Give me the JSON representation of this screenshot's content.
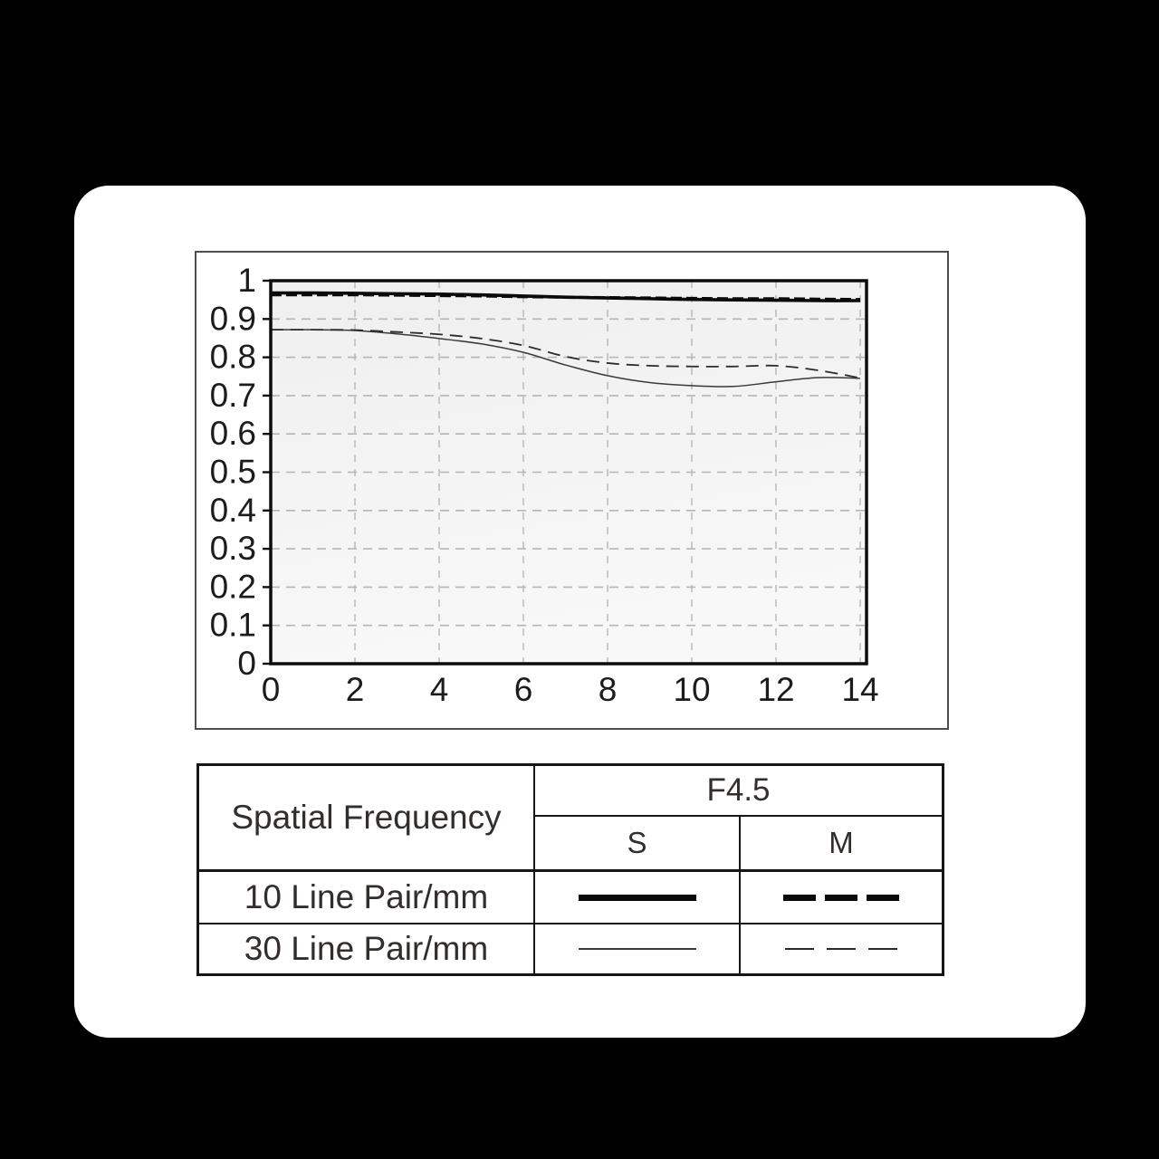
{
  "colors": {
    "page_background": "#000000",
    "card_background": "#ffffff",
    "curve_black": "#0a0a0a",
    "curve_thin": "#3a3a3a",
    "grid_gray": "#b5b5b5",
    "frame_black": "#0c0c0c",
    "panel_border": "#4d4d4d",
    "table_border": "#161616",
    "text": "#332d2b"
  },
  "chart_data": {
    "type": "line",
    "title": "",
    "xlabel": "",
    "ylabel": "",
    "xlim": [
      0,
      14.15
    ],
    "ylim": [
      0,
      1
    ],
    "grid": "dashed",
    "legend_position": "table-below",
    "x": [
      0,
      1,
      2,
      3,
      4,
      5,
      6,
      7,
      8,
      9,
      10,
      11,
      12,
      13,
      14
    ],
    "series": [
      {
        "name": "10 Line Pair/mm S",
        "style": "thick-solid",
        "values": [
          0.968,
          0.968,
          0.967,
          0.966,
          0.965,
          0.963,
          0.96,
          0.957,
          0.955,
          0.953,
          0.951,
          0.95,
          0.949,
          0.948,
          0.948
        ]
      },
      {
        "name": "10 Line Pair/mm M",
        "style": "thick-dashed",
        "values": [
          0.963,
          0.963,
          0.963,
          0.962,
          0.961,
          0.96,
          0.958,
          0.957,
          0.956,
          0.955,
          0.954,
          0.953,
          0.953,
          0.952,
          0.951
        ]
      },
      {
        "name": "30 Line Pair/mm S",
        "style": "thin-solid",
        "values": [
          0.872,
          0.872,
          0.87,
          0.861,
          0.849,
          0.835,
          0.813,
          0.78,
          0.752,
          0.734,
          0.726,
          0.724,
          0.736,
          0.747,
          0.745
        ]
      },
      {
        "name": "30 Line Pair/mm M",
        "style": "thin-dashed",
        "values": [
          0.872,
          0.872,
          0.871,
          0.866,
          0.86,
          0.849,
          0.831,
          0.802,
          0.785,
          0.778,
          0.776,
          0.776,
          0.778,
          0.766,
          0.746
        ]
      }
    ],
    "x_tick_values": [
      0,
      2,
      4,
      6,
      8,
      10,
      12,
      14
    ],
    "x_tick_labels": [
      "0",
      "2",
      "4",
      "6",
      "8",
      "10",
      "12",
      "14"
    ],
    "y_tick_values": [
      0,
      0.1,
      0.2,
      0.3,
      0.4,
      0.5,
      0.6,
      0.7,
      0.8,
      0.9,
      1
    ],
    "y_tick_labels": [
      "0",
      "0.1",
      "0.2",
      "0.3",
      "0.4",
      "0.5",
      "0.6",
      "0.7",
      "0.8",
      "0.9",
      "1"
    ],
    "x_gridline_values": [
      2,
      4,
      6,
      8,
      10,
      12,
      14
    ],
    "y_gridline_values": [
      0.1,
      0.2,
      0.3,
      0.4,
      0.5,
      0.6,
      0.7,
      0.8,
      0.9
    ]
  },
  "legend_table": {
    "spatial_frequency_label": "Spatial Frequency",
    "aperture_label": "F4.5",
    "col_s_label": "S",
    "col_m_label": "M",
    "rows": [
      {
        "label": "10 Line Pair/mm",
        "s_style": "thick-solid",
        "m_style": "thick-dashed"
      },
      {
        "label": "30 Line Pair/mm",
        "s_style": "thin-solid",
        "m_style": "thin-dashed"
      }
    ]
  }
}
